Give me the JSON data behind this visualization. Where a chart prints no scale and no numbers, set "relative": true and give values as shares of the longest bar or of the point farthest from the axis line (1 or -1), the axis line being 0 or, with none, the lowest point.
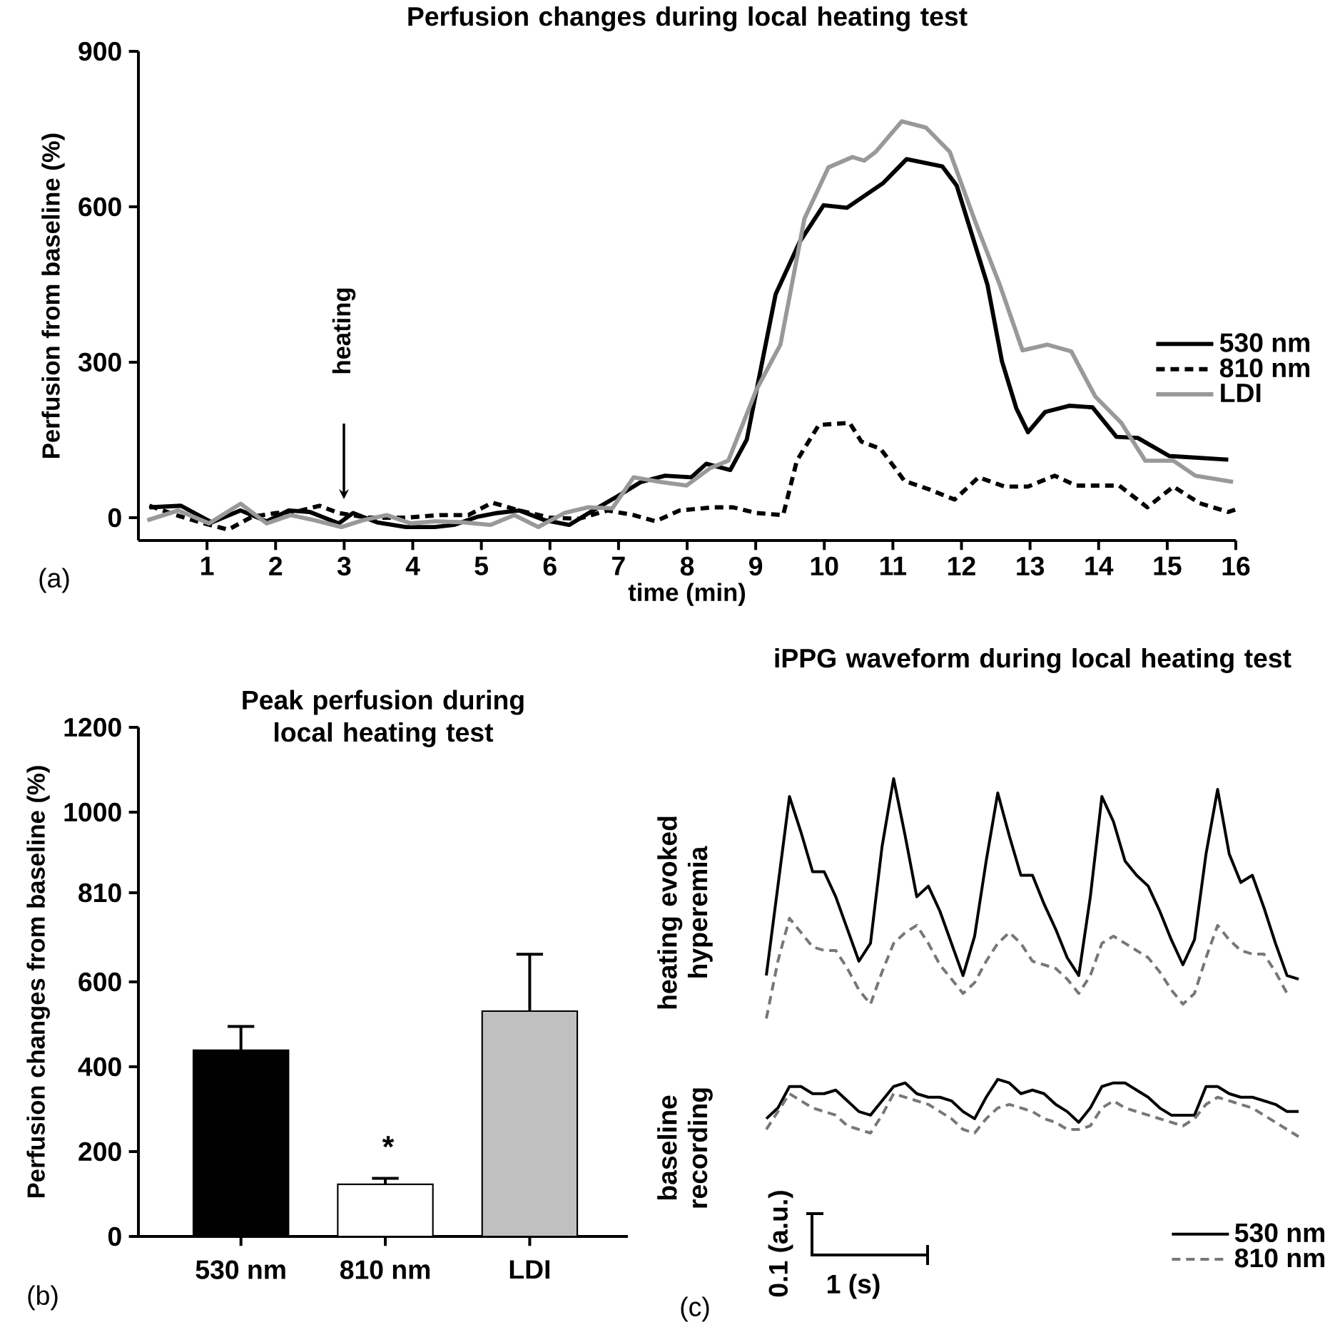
{
  "chart_data": [
    {
      "type": "line",
      "title": "Perfusion changes during local heating test",
      "xlabel": "time (min)",
      "ylabel": "Perfusion from baseline (%)",
      "xlim": [
        0,
        16
      ],
      "ylim": [
        -44,
        900
      ],
      "xticks": [
        1,
        2,
        3,
        4,
        5,
        6,
        7,
        8,
        9,
        10,
        11,
        12,
        13,
        14,
        15,
        16
      ],
      "yticks": [
        0,
        300,
        600,
        900
      ],
      "legend": "right",
      "series": [
        {
          "name": "530 nm",
          "color": "#000000",
          "line_style": "solid",
          "x": [
            0.16,
            0.62,
            1.07,
            1.49,
            1.87,
            2.19,
            2.5,
            2.92,
            3.13,
            3.48,
            3.9,
            4.32,
            4.6,
            4.95,
            5.23,
            5.55,
            5.93,
            6.28,
            6.63,
            6.98,
            7.33,
            7.68,
            8.06,
            8.28,
            8.63,
            8.87,
            9.29,
            9.64,
            9.99,
            10.33,
            10.86,
            11.2,
            11.72,
            11.93,
            12.38,
            12.59,
            12.8,
            12.97,
            13.22,
            13.57,
            13.91,
            14.26,
            14.57,
            15.03,
            15.89
          ],
          "values": [
            20,
            23,
            -9,
            14,
            -7,
            14,
            11,
            -11,
            9,
            -9,
            -18,
            -18,
            -14,
            2,
            9,
            14,
            -5,
            -14,
            14,
            41,
            69,
            81,
            78,
            104,
            92,
            151,
            431,
            532,
            603,
            598,
            646,
            692,
            678,
            641,
            449,
            302,
            211,
            165,
            204,
            216,
            213,
            156,
            154,
            119,
            112
          ]
        },
        {
          "name": "810 nm",
          "color": "#000000",
          "line_style": "dashed",
          "x": [
            0.16,
            0.55,
            0.9,
            1.31,
            1.66,
            2.01,
            2.29,
            2.64,
            2.92,
            3.34,
            3.9,
            4.39,
            4.81,
            5.16,
            5.55,
            6.0,
            6.42,
            6.84,
            7.22,
            7.54,
            7.89,
            8.38,
            8.67,
            9.01,
            9.4,
            9.6,
            9.92,
            10.37,
            10.54,
            10.82,
            11.17,
            11.52,
            11.9,
            12.25,
            12.63,
            12.97,
            13.36,
            13.67,
            14.3,
            14.71,
            15.09,
            15.47,
            15.89,
            16.0
          ],
          "values": [
            23,
            5,
            -9,
            -23,
            2,
            9,
            11,
            23,
            9,
            0,
            0,
            5,
            5,
            29,
            14,
            0,
            -2,
            14,
            5,
            -7,
            14,
            20,
            20,
            9,
            5,
            110,
            179,
            183,
            147,
            133,
            71,
            55,
            35,
            78,
            60,
            60,
            81,
            62,
            62,
            20,
            60,
            28,
            11,
            16
          ]
        },
        {
          "name": "LDI",
          "color": "#999999",
          "line_style": "solid",
          "x": [
            0.13,
            0.58,
            1.03,
            1.49,
            1.87,
            2.22,
            2.57,
            2.96,
            3.27,
            3.62,
            3.97,
            4.32,
            4.74,
            5.13,
            5.48,
            5.83,
            6.21,
            6.56,
            6.91,
            7.22,
            7.61,
            7.99,
            8.34,
            8.6,
            9.01,
            9.36,
            9.71,
            10.06,
            10.41,
            10.58,
            10.75,
            11.13,
            11.48,
            11.83,
            12.21,
            12.56,
            12.89,
            13.25,
            13.6,
            13.95,
            14.33,
            14.68,
            15.09,
            15.41,
            15.96
          ],
          "values": [
            -5,
            14,
            -11,
            27,
            -11,
            5,
            -5,
            -18,
            -5,
            5,
            -11,
            -7,
            -9,
            -14,
            5,
            -18,
            9,
            20,
            18,
            78,
            69,
            62,
            96,
            110,
            247,
            334,
            577,
            676,
            696,
            689,
            706,
            765,
            753,
            706,
            568,
            449,
            323,
            334,
            321,
            234,
            183,
            110,
            110,
            81,
            69
          ]
        }
      ],
      "annotations": [
        "heating",
        "(a)"
      ]
    },
    {
      "type": "bar",
      "title": "Peak perfusion during local heating test",
      "ylabel": "Perfusion changes from baseline (%)",
      "categories": [
        "530 nm",
        "810 nm",
        "LDI"
      ],
      "values": [
        439,
        123,
        531
      ],
      "colors": [
        "#000000",
        "#ffffff",
        "#c0c0c0"
      ],
      "errors": [
        [
          439,
          495
        ],
        [
          123,
          137
        ],
        [
          531,
          665
        ]
      ],
      "ylim": [
        0,
        1200
      ],
      "yticks": [
        0,
        200,
        400,
        600,
        810,
        1000,
        1200
      ],
      "annotations": [
        "*",
        "(b)"
      ]
    },
    {
      "type": "line",
      "relative": true,
      "title": "iPPG waveform during local heating test",
      "legend": "bottom right",
      "categories": [
        null,
        null,
        null,
        null,
        null,
        null,
        null,
        null,
        null,
        null,
        null,
        null,
        null,
        null,
        null,
        null,
        null,
        null,
        null,
        null,
        null,
        null,
        null,
        null,
        null,
        null,
        null,
        null,
        null,
        null,
        null,
        null,
        null,
        null,
        null,
        null,
        null,
        null,
        null,
        null,
        null,
        null,
        null,
        null,
        null,
        null,
        null
      ],
      "series": [
        {
          "name": "530 nm",
          "color": "#000000",
          "line_style": "solid",
          "values": [
            0.45,
            0.7,
            0.95,
            0.85,
            0.74,
            0.74,
            0.67,
            0.58,
            0.49,
            0.54,
            0.81,
            1.0,
            0.84,
            0.67,
            0.7,
            0.63,
            0.54,
            0.45,
            0.56,
            0.77,
            0.96,
            0.84,
            0.73,
            0.73,
            0.65,
            0.58,
            0.5,
            0.45,
            0.67,
            0.95,
            0.88,
            0.77,
            0.73,
            0.7,
            0.63,
            0.55,
            0.48,
            0.55,
            0.79,
            0.97,
            0.79,
            0.71,
            0.73,
            0.64,
            0.54,
            0.45,
            0.44
          ]
        },
        {
          "name": "810 nm",
          "color": "#777777",
          "line_style": "dashed",
          "values": [
            0.33,
            0.49,
            0.61,
            0.57,
            0.53,
            0.52,
            0.52,
            0.47,
            0.41,
            0.37,
            0.46,
            0.54,
            0.57,
            0.59,
            0.54,
            0.48,
            0.44,
            0.4,
            0.43,
            0.49,
            0.54,
            0.57,
            0.54,
            0.49,
            0.48,
            0.47,
            0.44,
            0.4,
            0.45,
            0.54,
            0.56,
            0.54,
            0.52,
            0.5,
            0.46,
            0.41,
            0.37,
            0.4,
            0.5,
            0.59,
            0.55,
            0.52,
            0.51,
            0.51,
            0.46,
            0.4,
            null
          ]
        },
        {
          "color": "#000000",
          "line_style": "solid",
          "values": [
            0.05,
            0.08,
            0.14,
            0.14,
            0.12,
            0.12,
            0.13,
            0.1,
            0.07,
            0.06,
            0.1,
            0.14,
            0.15,
            0.12,
            0.11,
            0.11,
            0.1,
            0.07,
            0.05,
            0.11,
            0.16,
            0.15,
            0.12,
            0.13,
            0.12,
            0.09,
            0.07,
            0.04,
            0.08,
            0.14,
            0.15,
            0.15,
            0.13,
            0.11,
            0.08,
            0.06,
            0.06,
            0.06,
            0.14,
            0.14,
            0.12,
            0.11,
            0.11,
            0.1,
            0.09,
            0.07,
            0.07
          ]
        },
        {
          "color": "#777777",
          "line_style": "dashed",
          "values": [
            0.02,
            0.07,
            0.12,
            0.1,
            0.08,
            0.07,
            0.06,
            0.03,
            0.02,
            0.01,
            0.06,
            0.12,
            0.11,
            0.1,
            0.09,
            0.07,
            0.05,
            0.02,
            0.01,
            0.05,
            0.08,
            0.09,
            0.08,
            0.07,
            0.05,
            0.04,
            0.02,
            0.02,
            0.03,
            0.08,
            0.1,
            0.08,
            0.07,
            0.06,
            0.05,
            0.04,
            0.03,
            0.05,
            0.09,
            0.11,
            0.1,
            0.09,
            0.08,
            0.06,
            0.04,
            0.02,
            0
          ]
        }
      ],
      "annotations": [
        "heating evoked hyperemia",
        "baseline recording",
        "0.1 (a.u.)",
        "1 (s)",
        "(c)"
      ]
    }
  ]
}
